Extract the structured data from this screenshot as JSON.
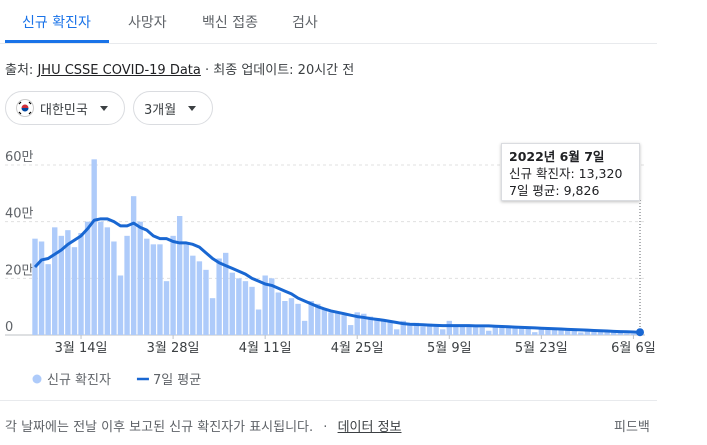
{
  "tabs": [
    "신규 확진자",
    "사망자",
    "백신 접종",
    "검사"
  ],
  "source": {
    "prefix": "출처:",
    "link": "JHU CSSE COVID-19 Data",
    "updated": "· 최종 업데이트: 20시간 전"
  },
  "filters": [
    "대한민국",
    "3개월"
  ],
  "tooltip": {
    "date": "2022년 6월 7일",
    "lines": [
      "신규 확진자: 13,320",
      "7일 평균: 9,826"
    ]
  },
  "footer": {
    "note": "각 날짜에는 전날 이후 보고된 신규 확진자가 표시됩니다.",
    "separator": "·",
    "link": "데이터 정보",
    "feedback": "피드백"
  },
  "chart_data": {
    "type": "bar-line",
    "categories": [
      null,
      null,
      null,
      null,
      null,
      null,
      null,
      "3월 14일",
      null,
      null,
      null,
      null,
      null,
      null,
      null,
      null,
      null,
      null,
      null,
      null,
      null,
      "3월 28일",
      null,
      null,
      null,
      null,
      null,
      null,
      null,
      null,
      null,
      null,
      null,
      null,
      null,
      "4월 11일",
      null,
      null,
      null,
      null,
      null,
      null,
      null,
      null,
      null,
      null,
      null,
      null,
      null,
      "4월 25일",
      null,
      null,
      null,
      null,
      null,
      null,
      null,
      null,
      null,
      null,
      null,
      null,
      null,
      "5월 9일",
      null,
      null,
      null,
      null,
      null,
      null,
      null,
      null,
      null,
      null,
      null,
      null,
      null,
      "5월 23일",
      null,
      null,
      null,
      null,
      null,
      null,
      null,
      null,
      null,
      null,
      null,
      null,
      null,
      "6월 6일",
      null
    ],
    "series": [
      {
        "name": "신규 확진자",
        "kind": "bar",
        "color": "#aecbfa",
        "values": [
          340000,
          330000,
          250000,
          380000,
          350000,
          370000,
          310000,
          360000,
          400000,
          620000,
          400000,
          380000,
          330000,
          210000,
          350000,
          490000,
          400000,
          340000,
          320000,
          320000,
          190000,
          350000,
          420000,
          320000,
          280000,
          260000,
          230000,
          130000,
          270000,
          290000,
          220000,
          200000,
          190000,
          170000,
          90000,
          210000,
          200000,
          150000,
          120000,
          130000,
          110000,
          50000,
          120000,
          110000,
          90000,
          80000,
          80000,
          70000,
          35000,
          80000,
          75000,
          65000,
          60000,
          55000,
          50000,
          20000,
          50000,
          40000,
          43000,
          30000,
          40000,
          35000,
          20000,
          50000,
          35000,
          30000,
          28000,
          27000,
          26000,
          15000,
          35000,
          30000,
          28000,
          26000,
          25000,
          24000,
          10000,
          25000,
          22000,
          20000,
          19000,
          18000,
          17000,
          9000,
          15000,
          14000,
          13000,
          12000,
          11000,
          10000,
          5000,
          4000,
          13320
        ]
      },
      {
        "name": "7일 평균",
        "kind": "line",
        "color": "#1967d2",
        "values": [
          240000,
          265000,
          270000,
          285000,
          300000,
          320000,
          335000,
          350000,
          375000,
          405000,
          410000,
          410000,
          400000,
          385000,
          385000,
          395000,
          380000,
          370000,
          350000,
          340000,
          340000,
          330000,
          325000,
          325000,
          320000,
          310000,
          290000,
          270000,
          255000,
          245000,
          235000,
          225000,
          215000,
          200000,
          190000,
          180000,
          175000,
          165000,
          155000,
          145000,
          130000,
          120000,
          110000,
          100000,
          92000,
          85000,
          80000,
          75000,
          70000,
          65000,
          62000,
          58000,
          55000,
          52000,
          48000,
          44000,
          40000,
          38000,
          37000,
          36000,
          35000,
          34000,
          33000,
          33000,
          33000,
          33000,
          33000,
          32000,
          32000,
          32000,
          31000,
          30000,
          29000,
          28000,
          27000,
          26000,
          25000,
          24000,
          23000,
          22000,
          21000,
          20000,
          19000,
          18000,
          17000,
          16000,
          15000,
          14000,
          13000,
          12000,
          11500,
          10500,
          9826
        ]
      }
    ],
    "ylim": [
      0,
      600000
    ],
    "yticks": [
      0,
      {
        "value": 200000,
        "label": "20만"
      },
      {
        "value": 400000,
        "label": "40만"
      },
      {
        "value": 600000,
        "label": "60만"
      }
    ],
    "grid": true
  }
}
